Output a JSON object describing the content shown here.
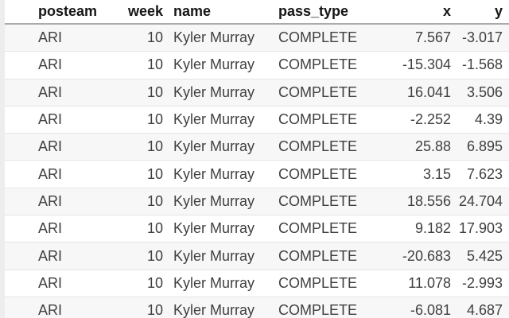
{
  "table": {
    "columns": [
      {
        "key": "posteam",
        "label": "posteam"
      },
      {
        "key": "week",
        "label": "week"
      },
      {
        "key": "name",
        "label": "name"
      },
      {
        "key": "pass_type",
        "label": "pass_type"
      },
      {
        "key": "x",
        "label": "x"
      },
      {
        "key": "y",
        "label": "y"
      }
    ],
    "rows": [
      {
        "posteam": "ARI",
        "week": "10",
        "name": "Kyler Murray",
        "pass_type": "COMPLETE",
        "x": "7.567",
        "y": "-3.017"
      },
      {
        "posteam": "ARI",
        "week": "10",
        "name": "Kyler Murray",
        "pass_type": "COMPLETE",
        "x": "-15.304",
        "y": "-1.568"
      },
      {
        "posteam": "ARI",
        "week": "10",
        "name": "Kyler Murray",
        "pass_type": "COMPLETE",
        "x": "16.041",
        "y": "3.506"
      },
      {
        "posteam": "ARI",
        "week": "10",
        "name": "Kyler Murray",
        "pass_type": "COMPLETE",
        "x": "-2.252",
        "y": "4.39"
      },
      {
        "posteam": "ARI",
        "week": "10",
        "name": "Kyler Murray",
        "pass_type": "COMPLETE",
        "x": "25.88",
        "y": "6.895"
      },
      {
        "posteam": "ARI",
        "week": "10",
        "name": "Kyler Murray",
        "pass_type": "COMPLETE",
        "x": "3.15",
        "y": "7.623"
      },
      {
        "posteam": "ARI",
        "week": "10",
        "name": "Kyler Murray",
        "pass_type": "COMPLETE",
        "x": "18.556",
        "y": "24.704"
      },
      {
        "posteam": "ARI",
        "week": "10",
        "name": "Kyler Murray",
        "pass_type": "COMPLETE",
        "x": "9.182",
        "y": "17.903"
      },
      {
        "posteam": "ARI",
        "week": "10",
        "name": "Kyler Murray",
        "pass_type": "COMPLETE",
        "x": "-20.683",
        "y": "5.425"
      },
      {
        "posteam": "ARI",
        "week": "10",
        "name": "Kyler Murray",
        "pass_type": "COMPLETE",
        "x": "11.078",
        "y": "-2.993"
      },
      {
        "posteam": "ARI",
        "week": "10",
        "name": "Kyler Murray",
        "pass_type": "COMPLETE",
        "x": "-6.081",
        "y": "4.687"
      }
    ]
  },
  "colors": {
    "stripe_row": "#f7f7f7",
    "row_separator": "#e4e4e4",
    "header_underline": "#ababab"
  }
}
